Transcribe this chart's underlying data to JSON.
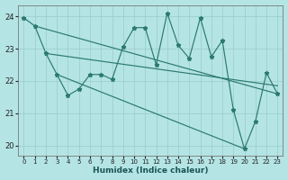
{
  "xlabel": "Humidex (Indice chaleur)",
  "bg_color": "#b5e4e4",
  "grid_color": "#99cccc",
  "line_color": "#2a7a6e",
  "ylim": [
    19.7,
    24.35
  ],
  "xlim": [
    -0.5,
    23.5
  ],
  "yticks": [
    20,
    21,
    22,
    23,
    24
  ],
  "xticks": [
    0,
    1,
    2,
    3,
    4,
    5,
    6,
    7,
    8,
    9,
    10,
    11,
    12,
    13,
    14,
    15,
    16,
    17,
    18,
    19,
    20,
    21,
    22,
    23
  ],
  "main_line": [
    23.95,
    23.7,
    22.85,
    22.2,
    21.55,
    21.75,
    22.2,
    22.2,
    22.05,
    23.05,
    23.65,
    23.65,
    22.5,
    24.1,
    23.1,
    22.7,
    23.95,
    22.75,
    23.25,
    21.1,
    19.9,
    20.75,
    22.25,
    21.6
  ],
  "upper_trend_start": 23.7,
  "upper_trend_end": 21.6,
  "mid_trend_start": 22.85,
  "mid_trend_end": 21.85,
  "lower_trend_start": 22.2,
  "lower_trend_end": 19.9,
  "lower_trend_x_end": 20
}
